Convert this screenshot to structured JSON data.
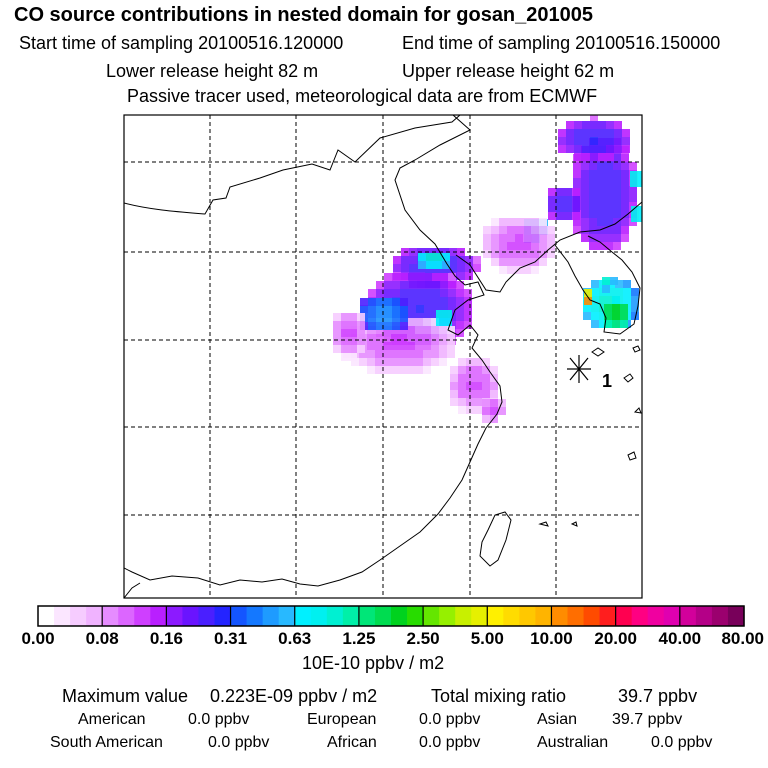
{
  "title": "CO  source contributions in nested domain for gosan_201005",
  "header": {
    "start_label": "Start time of sampling 20100516.120000",
    "end_label": "End time of sampling 20100516.150000",
    "lower_label": "Lower release height   82 m",
    "upper_label": "Upper release height   62 m",
    "tracer_note": "Passive tracer used, meteorological data are from ECMWF"
  },
  "map": {
    "receptor_label": "1",
    "plume_levels": [
      0.04,
      0.1,
      0.2,
      0.4,
      0.9,
      2.5,
      6.0
    ]
  },
  "colorbar": {
    "ticks": [
      "0.00",
      "0.08",
      "0.16",
      "0.31",
      "0.63",
      "1.25",
      "2.50",
      "5.00",
      "10.00",
      "20.00",
      "40.00",
      "80.00"
    ],
    "unit": "10E-10 ppbv / m2",
    "colors": [
      [
        "#ffffff",
        "#fbe6ff",
        "#f6ccff",
        "#f0b3ff"
      ],
      [
        "#e68cff",
        "#dc66ff",
        "#cf3fff",
        "#b91fff"
      ],
      [
        "#8c1aff",
        "#6a14ff",
        "#4a1fff",
        "#2424ff"
      ],
      [
        "#1455ff",
        "#1478ff",
        "#1e9bff",
        "#28b9ff"
      ],
      [
        "#00f0ff",
        "#00f0f0",
        "#00f0d2",
        "#00f0a8"
      ],
      [
        "#00e678",
        "#00dc50",
        "#00d21e",
        "#28dc00"
      ],
      [
        "#64e600",
        "#96f000",
        "#c8f000",
        "#e6f000"
      ],
      [
        "#fff000",
        "#ffdc00",
        "#ffc800",
        "#ffb400"
      ],
      [
        "#ff8c00",
        "#ff6e00",
        "#ff4b00",
        "#ff1e1e"
      ],
      [
        "#ff0050",
        "#ff0082",
        "#f000a0",
        "#e000b0"
      ],
      [
        "#d2009b",
        "#b40087",
        "#9b006e",
        "#78005a"
      ]
    ]
  },
  "footer": {
    "max_label": "Maximum value",
    "max_value": "0.223E-09 ppbv / m2",
    "total_label": "Total mixing ratio",
    "total_value": "39.7 ppbv",
    "regions": [
      {
        "name": "American",
        "value": "0.0 ppbv"
      },
      {
        "name": "European",
        "value": "0.0 ppbv"
      },
      {
        "name": "Asian",
        "value": "39.7 ppbv"
      },
      {
        "name": "South American",
        "value": "0.0 ppbv"
      },
      {
        "name": "African",
        "value": "0.0 ppbv"
      },
      {
        "name": "Australian",
        "value": "0.0 ppbv"
      }
    ]
  }
}
